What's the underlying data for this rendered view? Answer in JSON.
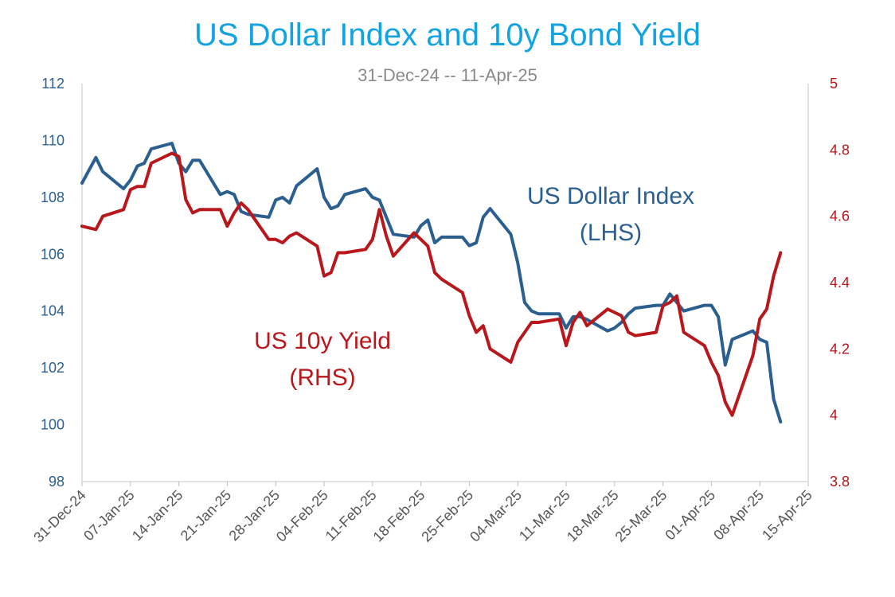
{
  "chart_data": {
    "type": "line",
    "title": "US Dollar Index and 10y Bond Yield",
    "subtitle": "31-Dec-24 -- 11-Apr-25",
    "x_ticks": [
      "31-Dec-24",
      "07-Jan-25",
      "14-Jan-25",
      "21-Jan-25",
      "28-Jan-25",
      "04-Feb-25",
      "11-Feb-25",
      "18-Feb-25",
      "25-Feb-25",
      "04-Mar-25",
      "11-Mar-25",
      "18-Mar-25",
      "25-Mar-25",
      "01-Apr-25",
      "08-Apr-25",
      "15-Apr-25"
    ],
    "x_range": [
      "2024-12-31",
      "2025-04-15"
    ],
    "y_left": {
      "range": [
        98,
        112
      ],
      "ticks": [
        98,
        100,
        102,
        104,
        106,
        108,
        110,
        112
      ],
      "color": "#2a5f8f"
    },
    "y_right": {
      "range": [
        3.8,
        5
      ],
      "ticks": [
        3.8,
        4,
        4.2,
        4.4,
        4.6,
        4.8,
        5
      ],
      "color": "#b8171c"
    },
    "grid": false,
    "legend": "none",
    "series": [
      {
        "name": "US Dollar Index (LHS)",
        "label_lines": [
          "US Dollar Index",
          "(LHS)"
        ],
        "axis": "left",
        "color": "#2a5f8f",
        "x": [
          "2024-12-31",
          "2025-01-02",
          "2025-01-03",
          "2025-01-06",
          "2025-01-07",
          "2025-01-08",
          "2025-01-09",
          "2025-01-10",
          "2025-01-13",
          "2025-01-14",
          "2025-01-15",
          "2025-01-16",
          "2025-01-17",
          "2025-01-20",
          "2025-01-21",
          "2025-01-22",
          "2025-01-23",
          "2025-01-24",
          "2025-01-27",
          "2025-01-28",
          "2025-01-29",
          "2025-01-30",
          "2025-01-31",
          "2025-02-03",
          "2025-02-04",
          "2025-02-05",
          "2025-02-06",
          "2025-02-07",
          "2025-02-10",
          "2025-02-11",
          "2025-02-12",
          "2025-02-13",
          "2025-02-14",
          "2025-02-17",
          "2025-02-18",
          "2025-02-19",
          "2025-02-20",
          "2025-02-21",
          "2025-02-24",
          "2025-02-25",
          "2025-02-26",
          "2025-02-27",
          "2025-02-28",
          "2025-03-03",
          "2025-03-04",
          "2025-03-05",
          "2025-03-06",
          "2025-03-07",
          "2025-03-10",
          "2025-03-11",
          "2025-03-12",
          "2025-03-13",
          "2025-03-14",
          "2025-03-17",
          "2025-03-18",
          "2025-03-19",
          "2025-03-20",
          "2025-03-21",
          "2025-03-24",
          "2025-03-25",
          "2025-03-26",
          "2025-03-27",
          "2025-03-28",
          "2025-03-31",
          "2025-04-01",
          "2025-04-02",
          "2025-04-03",
          "2025-04-04",
          "2025-04-07",
          "2025-04-08",
          "2025-04-09",
          "2025-04-10",
          "2025-04-11"
        ],
        "values": [
          108.5,
          109.4,
          108.9,
          108.3,
          108.6,
          109.1,
          109.2,
          109.7,
          109.9,
          109.2,
          108.9,
          109.3,
          109.3,
          108.1,
          108.2,
          108.1,
          107.5,
          107.4,
          107.3,
          107.9,
          108.0,
          107.8,
          108.4,
          109.0,
          108.0,
          107.6,
          107.7,
          108.1,
          108.3,
          108.0,
          107.9,
          107.3,
          106.7,
          106.6,
          107.0,
          107.2,
          106.4,
          106.6,
          106.6,
          106.3,
          106.4,
          107.3,
          107.6,
          106.7,
          105.7,
          104.3,
          104.0,
          103.9,
          103.9,
          103.4,
          103.8,
          103.8,
          103.7,
          103.3,
          103.4,
          103.6,
          103.9,
          104.1,
          104.2,
          104.2,
          104.6,
          104.3,
          104.0,
          104.2,
          104.2,
          103.8,
          102.1,
          103.0,
          103.3,
          103.0,
          102.9,
          100.9,
          100.1
        ]
      },
      {
        "name": "US 10y Yield (RHS)",
        "label_lines": [
          "US 10y Yield",
          "(RHS)"
        ],
        "axis": "right",
        "color": "#b8171c",
        "x": [
          "2024-12-31",
          "2025-01-02",
          "2025-01-03",
          "2025-01-06",
          "2025-01-07",
          "2025-01-08",
          "2025-01-09",
          "2025-01-10",
          "2025-01-13",
          "2025-01-14",
          "2025-01-15",
          "2025-01-16",
          "2025-01-17",
          "2025-01-20",
          "2025-01-21",
          "2025-01-22",
          "2025-01-23",
          "2025-01-24",
          "2025-01-27",
          "2025-01-28",
          "2025-01-29",
          "2025-01-30",
          "2025-01-31",
          "2025-02-03",
          "2025-02-04",
          "2025-02-05",
          "2025-02-06",
          "2025-02-07",
          "2025-02-10",
          "2025-02-11",
          "2025-02-12",
          "2025-02-13",
          "2025-02-14",
          "2025-02-17",
          "2025-02-18",
          "2025-02-19",
          "2025-02-20",
          "2025-02-21",
          "2025-02-24",
          "2025-02-25",
          "2025-02-26",
          "2025-02-27",
          "2025-02-28",
          "2025-03-03",
          "2025-03-04",
          "2025-03-05",
          "2025-03-06",
          "2025-03-07",
          "2025-03-10",
          "2025-03-11",
          "2025-03-12",
          "2025-03-13",
          "2025-03-14",
          "2025-03-17",
          "2025-03-18",
          "2025-03-19",
          "2025-03-20",
          "2025-03-21",
          "2025-03-24",
          "2025-03-25",
          "2025-03-26",
          "2025-03-27",
          "2025-03-28",
          "2025-03-31",
          "2025-04-01",
          "2025-04-02",
          "2025-04-03",
          "2025-04-04",
          "2025-04-07",
          "2025-04-08",
          "2025-04-09",
          "2025-04-10",
          "2025-04-11"
        ],
        "values": [
          4.57,
          4.56,
          4.6,
          4.62,
          4.68,
          4.69,
          4.69,
          4.76,
          4.79,
          4.78,
          4.65,
          4.61,
          4.62,
          4.62,
          4.57,
          4.61,
          4.64,
          4.62,
          4.53,
          4.53,
          4.52,
          4.54,
          4.55,
          4.51,
          4.42,
          4.43,
          4.49,
          4.49,
          4.5,
          4.53,
          4.62,
          4.54,
          4.48,
          4.55,
          4.53,
          4.51,
          4.43,
          4.41,
          4.37,
          4.3,
          4.25,
          4.27,
          4.2,
          4.16,
          4.22,
          4.25,
          4.28,
          4.28,
          4.29,
          4.21,
          4.28,
          4.31,
          4.27,
          4.32,
          4.31,
          4.3,
          4.25,
          4.24,
          4.25,
          4.33,
          4.34,
          4.36,
          4.25,
          4.21,
          4.16,
          4.12,
          4.04,
          4.0,
          4.18,
          4.29,
          4.32,
          4.42,
          4.49
        ]
      }
    ]
  }
}
